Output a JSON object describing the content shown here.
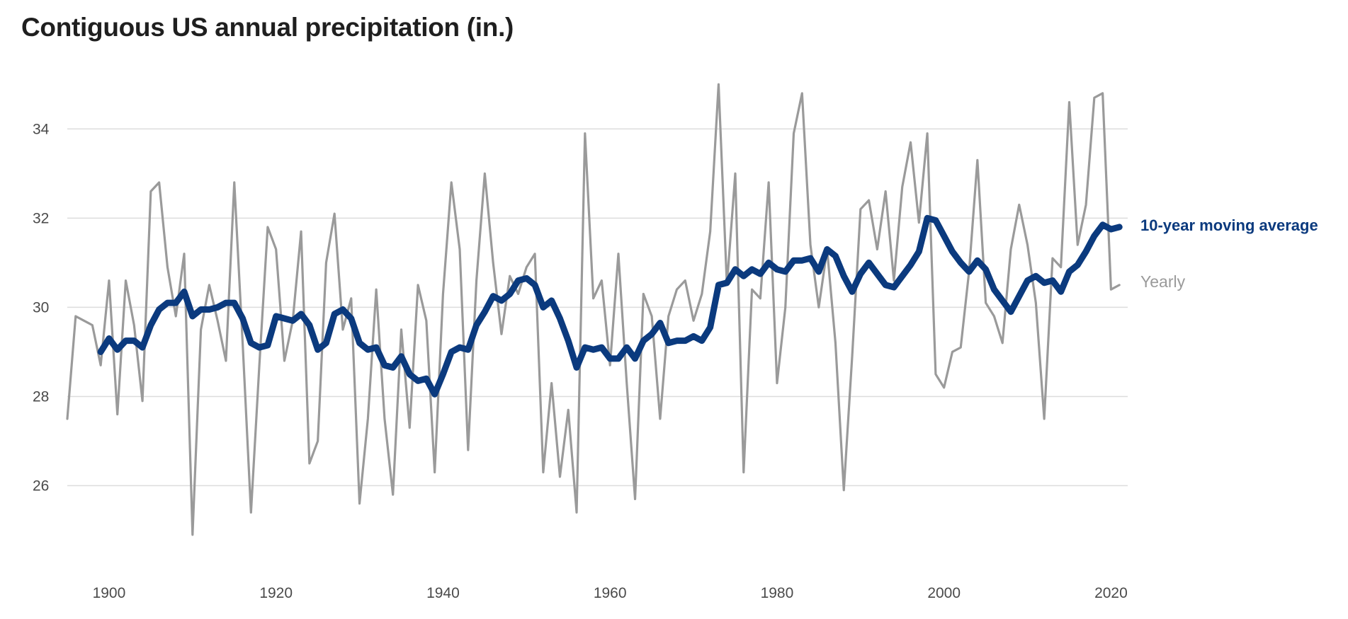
{
  "chart_data": {
    "type": "line",
    "title": "Contiguous US annual precipitation (in.)",
    "xlabel": "",
    "ylabel": "",
    "xlim": [
      1895,
      2022
    ],
    "ylim": [
      24.2,
      35.4
    ],
    "x_ticks": [
      1900,
      1920,
      1940,
      1960,
      1980,
      2000,
      2020
    ],
    "y_ticks": [
      26,
      28,
      30,
      32,
      34
    ],
    "grid": true,
    "legend": "right, direct labels",
    "colors": {
      "yearly": "#9a9a9a",
      "moving_average": "#0b3a7e"
    },
    "series": [
      {
        "name": "Yearly",
        "x_start": 1895,
        "x_end": 2021,
        "values": [
          27.5,
          29.8,
          29.7,
          29.6,
          28.7,
          30.6,
          27.6,
          30.6,
          29.6,
          27.9,
          32.6,
          32.8,
          30.9,
          29.8,
          31.2,
          24.9,
          29.5,
          30.5,
          29.7,
          28.8,
          32.8,
          29.2,
          25.4,
          28.7,
          31.8,
          31.3,
          28.8,
          29.7,
          31.7,
          26.5,
          27.0,
          31.0,
          32.1,
          29.5,
          30.2,
          25.6,
          27.5,
          30.4,
          27.5,
          25.8,
          29.5,
          27.3,
          30.5,
          29.7,
          26.3,
          30.3,
          32.8,
          31.3,
          26.8,
          30.6,
          33.0,
          31.0,
          29.4,
          30.7,
          30.3,
          30.9,
          31.2,
          26.3,
          28.3,
          26.2,
          27.7,
          25.4,
          33.9,
          30.2,
          30.6,
          28.7,
          31.2,
          28.3,
          25.7,
          30.3,
          29.8,
          27.5,
          29.8,
          30.4,
          30.6,
          29.7,
          30.3,
          31.7,
          35.0,
          30.5,
          33.0,
          26.3,
          30.4,
          30.2,
          32.8,
          28.3,
          30.0,
          33.9,
          34.8,
          31.4,
          30.0,
          31.3,
          29.2,
          25.9,
          28.9,
          32.2,
          32.4,
          31.3,
          32.6,
          30.6,
          32.7,
          33.7,
          31.9,
          33.9,
          28.5,
          28.2,
          29.0,
          29.1,
          30.8,
          33.3,
          30.1,
          29.8,
          29.2,
          31.3,
          32.3,
          31.4,
          30.1,
          27.5,
          31.1,
          30.9,
          34.6,
          31.4,
          32.3,
          34.7,
          34.8,
          30.4,
          30.5
        ]
      },
      {
        "name": "10-year moving average",
        "x_start": 1899,
        "x_end": 2021,
        "values": [
          29.0,
          29.3,
          29.05,
          29.25,
          29.25,
          29.1,
          29.6,
          29.95,
          30.1,
          30.1,
          30.35,
          29.8,
          29.95,
          29.95,
          30.0,
          30.1,
          30.1,
          29.75,
          29.2,
          29.1,
          29.15,
          29.8,
          29.75,
          29.7,
          29.85,
          29.6,
          29.05,
          29.2,
          29.85,
          29.95,
          29.75,
          29.2,
          29.05,
          29.1,
          28.7,
          28.65,
          28.9,
          28.5,
          28.35,
          28.4,
          28.05,
          28.5,
          29.0,
          29.1,
          29.05,
          29.6,
          29.9,
          30.25,
          30.15,
          30.3,
          30.6,
          30.65,
          30.5,
          30.0,
          30.15,
          29.75,
          29.25,
          28.65,
          29.1,
          29.05,
          29.1,
          28.85,
          28.85,
          29.1,
          28.85,
          29.25,
          29.4,
          29.65,
          29.2,
          29.25,
          29.25,
          29.35,
          29.25,
          29.55,
          30.5,
          30.55,
          30.85,
          30.7,
          30.85,
          30.75,
          31.0,
          30.85,
          30.8,
          31.05,
          31.05,
          31.1,
          30.8,
          31.3,
          31.15,
          30.7,
          30.35,
          30.75,
          31.0,
          30.75,
          30.5,
          30.45,
          30.7,
          30.95,
          31.25,
          32.0,
          31.95,
          31.6,
          31.25,
          31.0,
          30.8,
          31.05,
          30.85,
          30.4,
          30.15,
          29.9,
          30.25,
          30.6,
          30.7,
          30.55,
          30.6,
          30.35,
          30.8,
          30.95,
          31.25,
          31.6,
          31.85,
          31.75,
          31.8
        ]
      }
    ],
    "labels": {
      "moving_average": "10-year moving average",
      "yearly": "Yearly"
    }
  }
}
